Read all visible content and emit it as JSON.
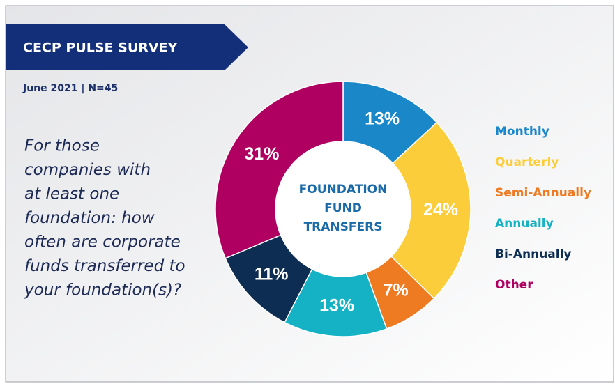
{
  "header": {
    "banner": "CECP PULSE SURVEY",
    "subtitle": "June 2021 | N=45"
  },
  "question": [
    "For those",
    "companies with",
    "at least one",
    "foundation: how",
    "often are corporate",
    "funds transferred to",
    "your foundation(s)?"
  ],
  "chart_data": {
    "type": "pie",
    "center_label": [
      "FOUNDATION",
      "FUND",
      "TRANSFERS"
    ],
    "categories": [
      "Monthly",
      "Quarterly",
      "Semi-Annually",
      "Annually",
      "Bi-Annually",
      "Other"
    ],
    "values": [
      13,
      24,
      7,
      13,
      11,
      31
    ],
    "value_labels": [
      "13%",
      "24%",
      "7%",
      "13%",
      "11%",
      "31%"
    ],
    "colors": [
      "#1a87c9",
      "#fccd3a",
      "#ee7a22",
      "#14b2c4",
      "#0e2d52",
      "#af0061"
    ]
  }
}
